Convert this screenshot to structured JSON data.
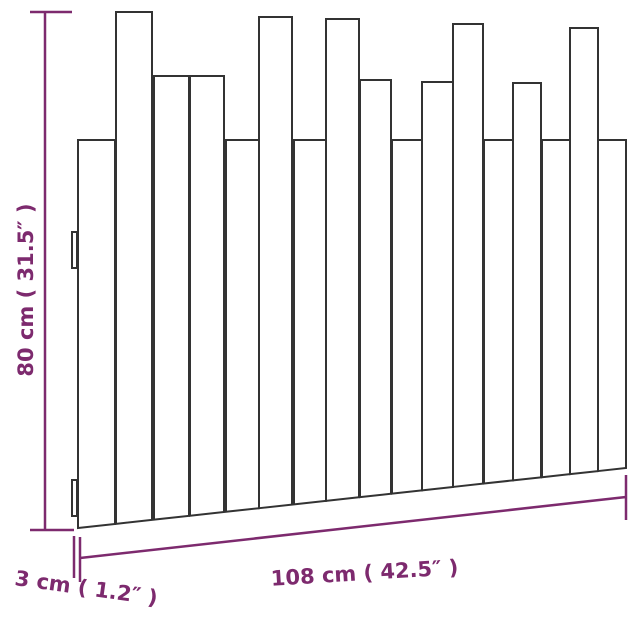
{
  "dimensions": {
    "height": "80 cm ( 31.5″ )",
    "width": "108 cm ( 42.5″ )",
    "depth": "3 cm ( 1.2″ )"
  },
  "colors": {
    "dimension": "#7d2a6e",
    "outline": "#333333"
  }
}
